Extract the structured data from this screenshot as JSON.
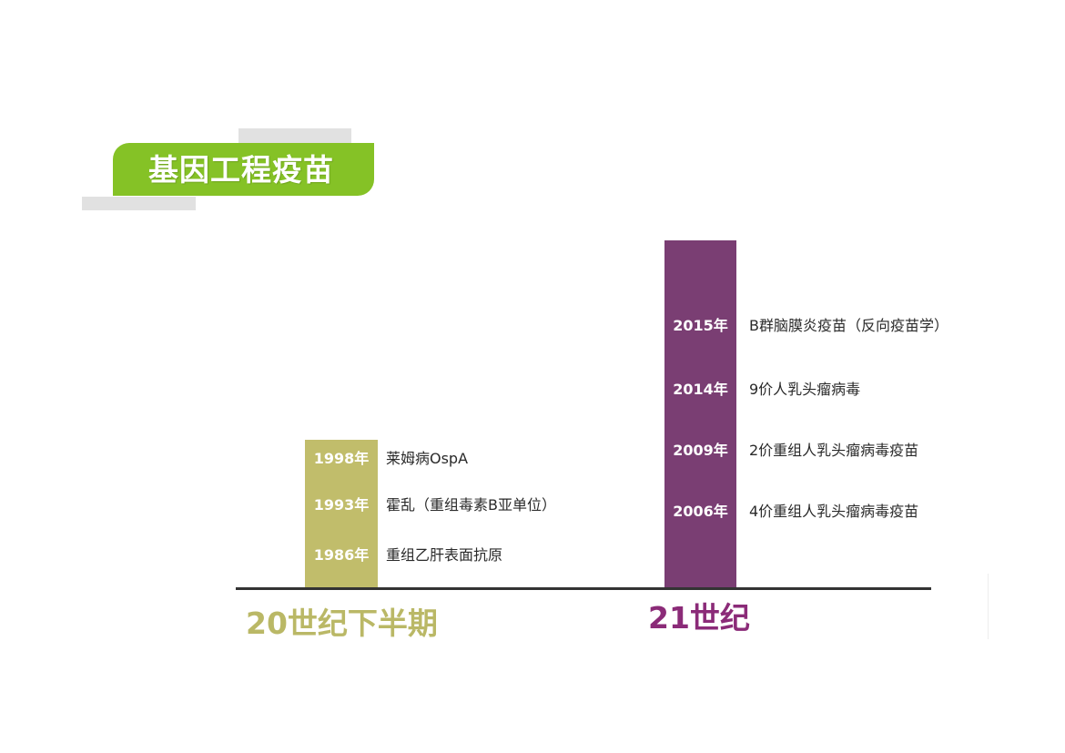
{
  "title": "基因工程疫苗",
  "colors": {
    "title_green": "#85c226",
    "era20_olive": "#c1bd6b",
    "era21_purple": "#7a3e73",
    "era21_label": "#8b2b78"
  },
  "era_20": {
    "label": "20世纪下半期",
    "events": [
      {
        "year": "1998年",
        "text": "莱姆病OspA"
      },
      {
        "year": "1993年",
        "text": "霍乱（重组毒素B亚单位）"
      },
      {
        "year": "1986年",
        "text": "重组乙肝表面抗原"
      }
    ]
  },
  "era_21": {
    "label": "21世纪",
    "events": [
      {
        "year": "2015年",
        "text": "B群脑膜炎疫苗（反向疫苗学）"
      },
      {
        "year": "2014年",
        "text": "9价人乳头瘤病毒"
      },
      {
        "year": "2009年",
        "text": "2价重组人乳头瘤病毒疫苗"
      },
      {
        "year": "2006年",
        "text": "4价重组人乳头瘤病毒疫苗"
      }
    ]
  }
}
